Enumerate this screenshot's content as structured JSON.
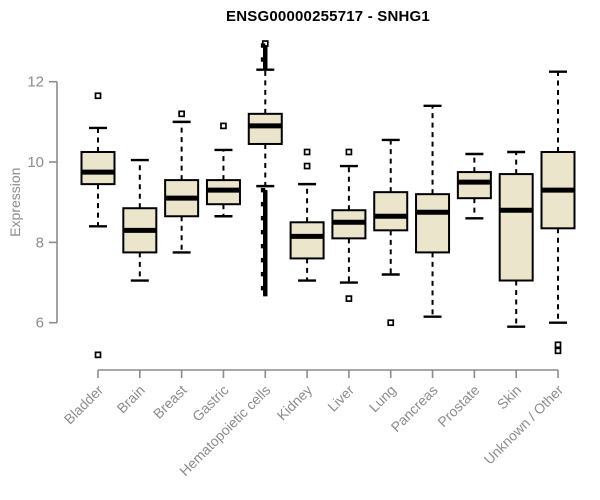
{
  "window": {
    "background": "#ffffff"
  },
  "chart_data": {
    "type": "boxplot",
    "title": "ENSG00000255717 - SNHG1",
    "ylabel": "Expression",
    "xlabel": "",
    "yticks": [
      6,
      8,
      10,
      12
    ],
    "yaxis_range": [
      6,
      12
    ],
    "grid": false,
    "legend": "none",
    "outlier_marker": "open-square",
    "categories": [
      "Bladder",
      "Brain",
      "Breast",
      "Gastric",
      "Hematopoietic cells",
      "Kidney",
      "Liver",
      "Lung",
      "Pancreas",
      "Prostate",
      "Skin",
      "Unknown / Other"
    ],
    "boxes": [
      {
        "category": "Bladder",
        "whisker_low": 8.4,
        "q1": 9.45,
        "median": 9.75,
        "q3": 10.25,
        "whisker_high": 10.85,
        "outliers": [
          11.65,
          5.2
        ],
        "outlier_runs": []
      },
      {
        "category": "Brain",
        "whisker_low": 7.05,
        "q1": 7.75,
        "median": 8.3,
        "q3": 8.85,
        "whisker_high": 10.05,
        "outliers": [],
        "outlier_runs": []
      },
      {
        "category": "Breast",
        "whisker_low": 7.75,
        "q1": 8.65,
        "median": 9.1,
        "q3": 9.55,
        "whisker_high": 11.0,
        "outliers": [
          11.2
        ],
        "outlier_runs": []
      },
      {
        "category": "Gastric",
        "whisker_low": 8.65,
        "q1": 8.95,
        "median": 9.3,
        "q3": 9.55,
        "whisker_high": 10.3,
        "outliers": [
          10.9
        ],
        "outlier_runs": []
      },
      {
        "category": "Hematopoietic cells",
        "whisker_low": 9.4,
        "q1": 10.45,
        "median": 10.9,
        "q3": 11.2,
        "whisker_high": 12.3,
        "outliers": [
          12.95
        ],
        "outlier_runs": [
          {
            "from": 12.35,
            "to": 12.9
          },
          {
            "from": 9.3,
            "to": 6.7
          }
        ]
      },
      {
        "category": "Kidney",
        "whisker_low": 7.05,
        "q1": 7.6,
        "median": 8.15,
        "q3": 8.5,
        "whisker_high": 9.45,
        "outliers": [
          10.25,
          9.9
        ],
        "outlier_runs": []
      },
      {
        "category": "Liver",
        "whisker_low": 7.0,
        "q1": 8.1,
        "median": 8.5,
        "q3": 8.8,
        "whisker_high": 9.9,
        "outliers": [
          10.25,
          6.6
        ],
        "outlier_runs": []
      },
      {
        "category": "Lung",
        "whisker_low": 7.2,
        "q1": 8.3,
        "median": 8.65,
        "q3": 9.25,
        "whisker_high": 10.55,
        "outliers": [
          6.0
        ],
        "outlier_runs": []
      },
      {
        "category": "Pancreas",
        "whisker_low": 6.15,
        "q1": 7.75,
        "median": 8.75,
        "q3": 9.2,
        "whisker_high": 11.4,
        "outliers": [],
        "outlier_runs": []
      },
      {
        "category": "Prostate",
        "whisker_low": 8.6,
        "q1": 9.1,
        "median": 9.5,
        "q3": 9.75,
        "whisker_high": 10.2,
        "outliers": [],
        "outlier_runs": []
      },
      {
        "category": "Skin",
        "whisker_low": 5.9,
        "q1": 7.05,
        "median": 8.8,
        "q3": 9.7,
        "whisker_high": 10.25,
        "outliers": [],
        "outlier_runs": []
      },
      {
        "category": "Unknown / Other",
        "whisker_low": 6.0,
        "q1": 8.35,
        "median": 9.3,
        "q3": 10.25,
        "whisker_high": 12.25,
        "outliers": [
          5.45,
          5.3
        ],
        "outlier_runs": []
      }
    ],
    "colors": {
      "box_fill": "#ebe6cb",
      "box_stroke": "#000000",
      "median": "#000000",
      "whisker": "#000000",
      "outlier": "#000000",
      "axis": "#8c8c8c",
      "axis_text": "#8c8c8c",
      "title_text": "#000000",
      "background": "#ffffff"
    }
  }
}
